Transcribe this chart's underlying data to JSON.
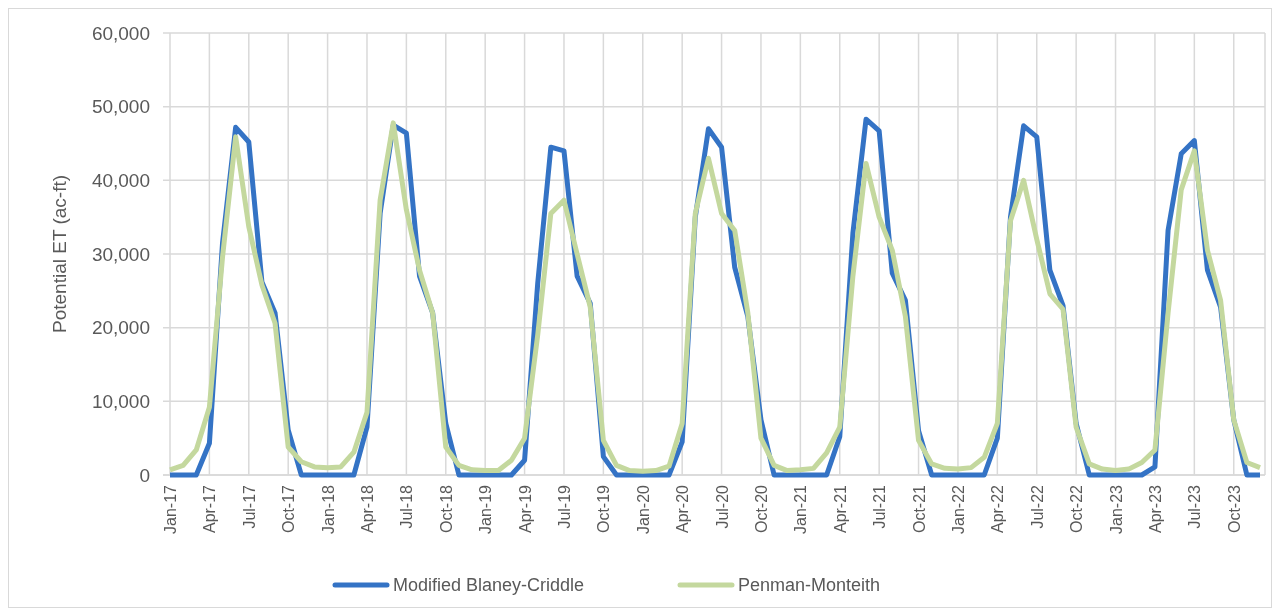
{
  "chart_data": {
    "type": "line",
    "ylabel": "Potential ET (ac-ft)",
    "categories": [
      "Jan-17",
      null,
      null,
      "Apr-17",
      null,
      null,
      "Jul-17",
      null,
      null,
      "Oct-17",
      null,
      null,
      "Jan-18",
      null,
      null,
      "Apr-18",
      null,
      null,
      "Jul-18",
      null,
      null,
      "Oct-18",
      null,
      null,
      "Jan-19",
      null,
      null,
      "Apr-19",
      null,
      null,
      "Jul-19",
      null,
      null,
      "Oct-19",
      null,
      null,
      "Jan-20",
      null,
      null,
      "Apr-20",
      null,
      null,
      "Jul-20",
      null,
      null,
      "Oct-20",
      null,
      null,
      "Jan-21",
      null,
      null,
      "Apr-21",
      null,
      null,
      "Jul-21",
      null,
      null,
      "Oct-21",
      null,
      null,
      "Jan-22",
      null,
      null,
      "Apr-22",
      null,
      null,
      "Jul-22",
      null,
      null,
      "Oct-22",
      null,
      null,
      "Jan-23",
      null,
      null,
      "Apr-23",
      null,
      null,
      "Jul-23",
      null,
      null,
      "Oct-23",
      null,
      null
    ],
    "series": [
      {
        "name": "Modified Blaney-Criddle",
        "color": "#3473c5",
        "values": [
          0,
          0,
          0,
          4300,
          31500,
          47200,
          45200,
          26200,
          22000,
          6100,
          0,
          0,
          0,
          0,
          0,
          6500,
          35500,
          47500,
          46400,
          27000,
          22000,
          7000,
          0,
          0,
          0,
          0,
          0,
          2000,
          26000,
          44500,
          44000,
          27000,
          23300,
          2500,
          0,
          0,
          0,
          0,
          0,
          4500,
          35000,
          47000,
          44500,
          28200,
          21500,
          7500,
          0,
          0,
          0,
          0,
          0,
          5200,
          32800,
          48300,
          46700,
          27400,
          23700,
          6000,
          0,
          0,
          0,
          0,
          0,
          5000,
          35000,
          47400,
          45900,
          27800,
          23000,
          7000,
          0,
          0,
          0,
          0,
          0,
          1100,
          33200,
          43600,
          45400,
          27800,
          22800,
          7500,
          0,
          0
        ]
      },
      {
        "name": "Penman-Monteith",
        "color": "#c4d89e",
        "values": [
          700,
          1300,
          3400,
          9200,
          29600,
          45900,
          33700,
          25800,
          20600,
          3800,
          1800,
          1100,
          1000,
          1100,
          3100,
          8500,
          37300,
          47800,
          36000,
          27800,
          22000,
          3800,
          1300,
          700,
          600,
          600,
          2000,
          5000,
          19000,
          35500,
          37300,
          30000,
          22800,
          4700,
          1300,
          600,
          500,
          600,
          1200,
          7000,
          35500,
          43000,
          35500,
          33200,
          22000,
          5000,
          1300,
          600,
          700,
          900,
          3000,
          6500,
          27000,
          42300,
          35000,
          30500,
          21500,
          4700,
          1500,
          900,
          800,
          1000,
          2400,
          7000,
          34500,
          40000,
          32000,
          24600,
          22500,
          6500,
          1500,
          800,
          600,
          800,
          1700,
          3400,
          22000,
          38700,
          44000,
          30500,
          23700,
          7500,
          1700,
          1000
        ]
      }
    ],
    "ylim": [
      0,
      60000
    ],
    "yticks": [
      0,
      {
        "value": 10000,
        "label": "10,000"
      },
      {
        "value": 20000,
        "label": "20,000"
      },
      {
        "value": 30000,
        "label": "30,000"
      },
      {
        "value": 40000,
        "label": "40,000"
      },
      {
        "value": 50000,
        "label": "50,000"
      },
      {
        "value": 60000,
        "label": "60,000"
      }
    ],
    "grid": true,
    "legend": "bottom",
    "marker": "none",
    "line_style": "solid"
  }
}
